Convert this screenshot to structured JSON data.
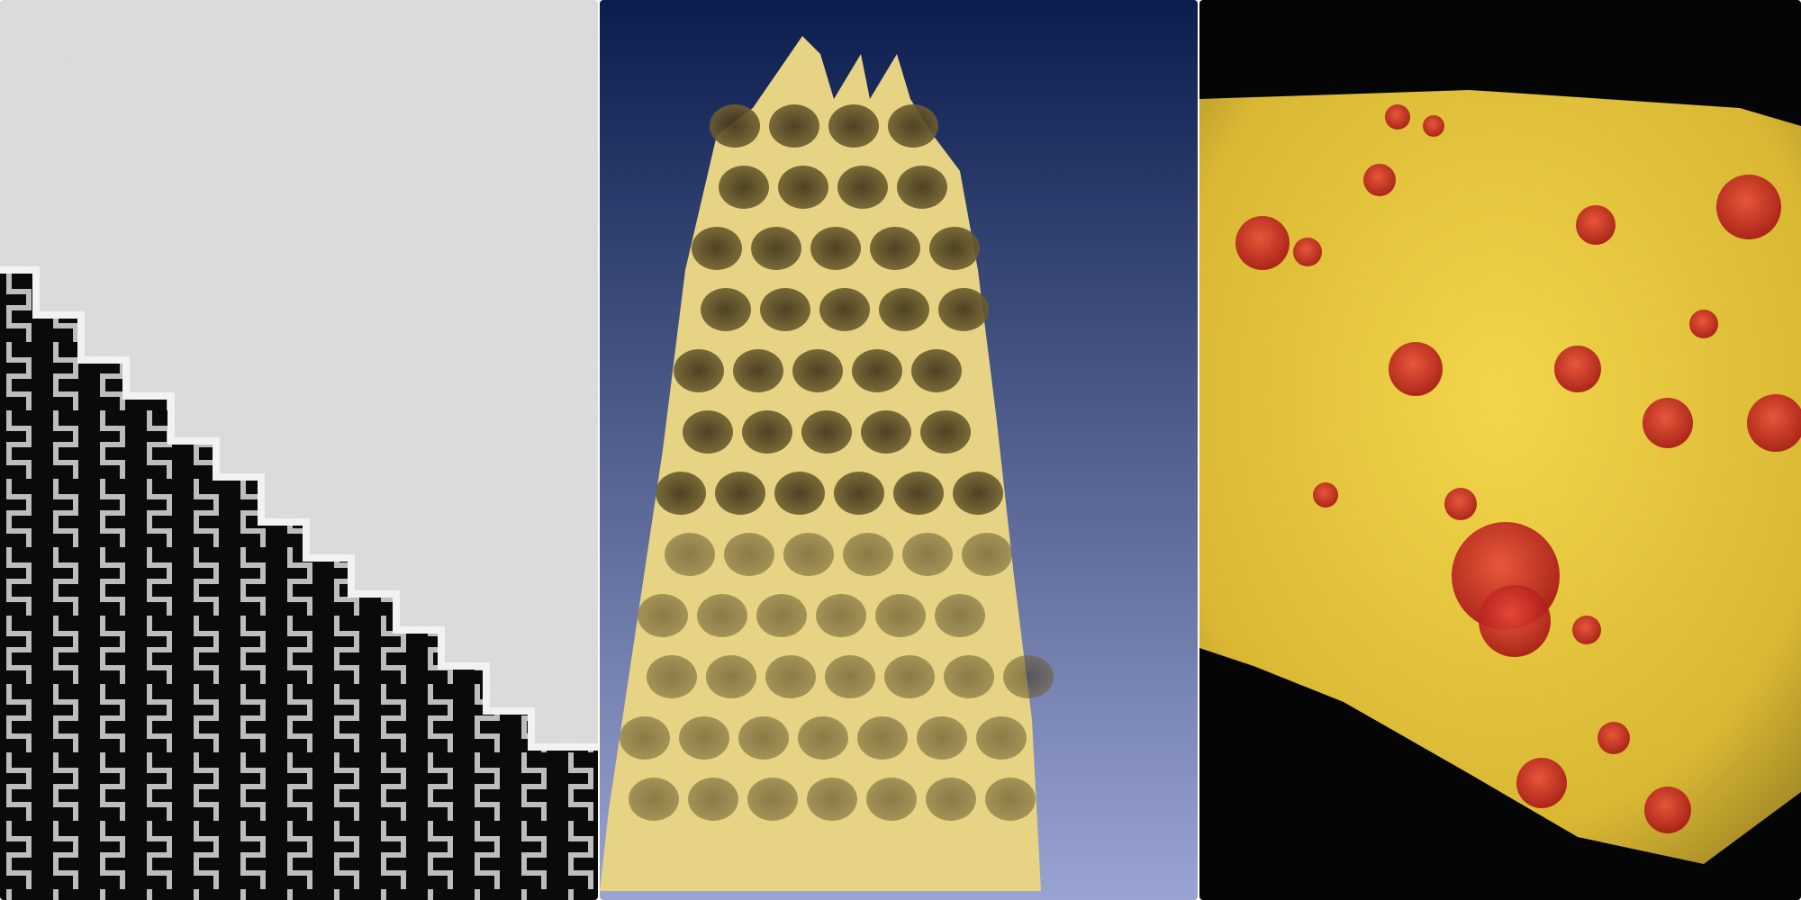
{
  "panels": [
    {
      "id": "tem-micrograph",
      "style": "grayscale",
      "background": "#dddddd",
      "pattern_color": "#0a0a0a",
      "structure_color": "#c8c8c8"
    },
    {
      "id": "tomography-lattice-render",
      "style": "3d-render",
      "background_top": "#0b1d4d",
      "background_bottom": "#9aa4d2",
      "surface_color": "#e8d58a",
      "pore_color": "#5c4f2a"
    },
    {
      "id": "volume-render-tissue",
      "style": "3d-render",
      "background": "#050505",
      "tissue_color": "#e3c23a",
      "inclusion_color": "#d42a25"
    }
  ]
}
